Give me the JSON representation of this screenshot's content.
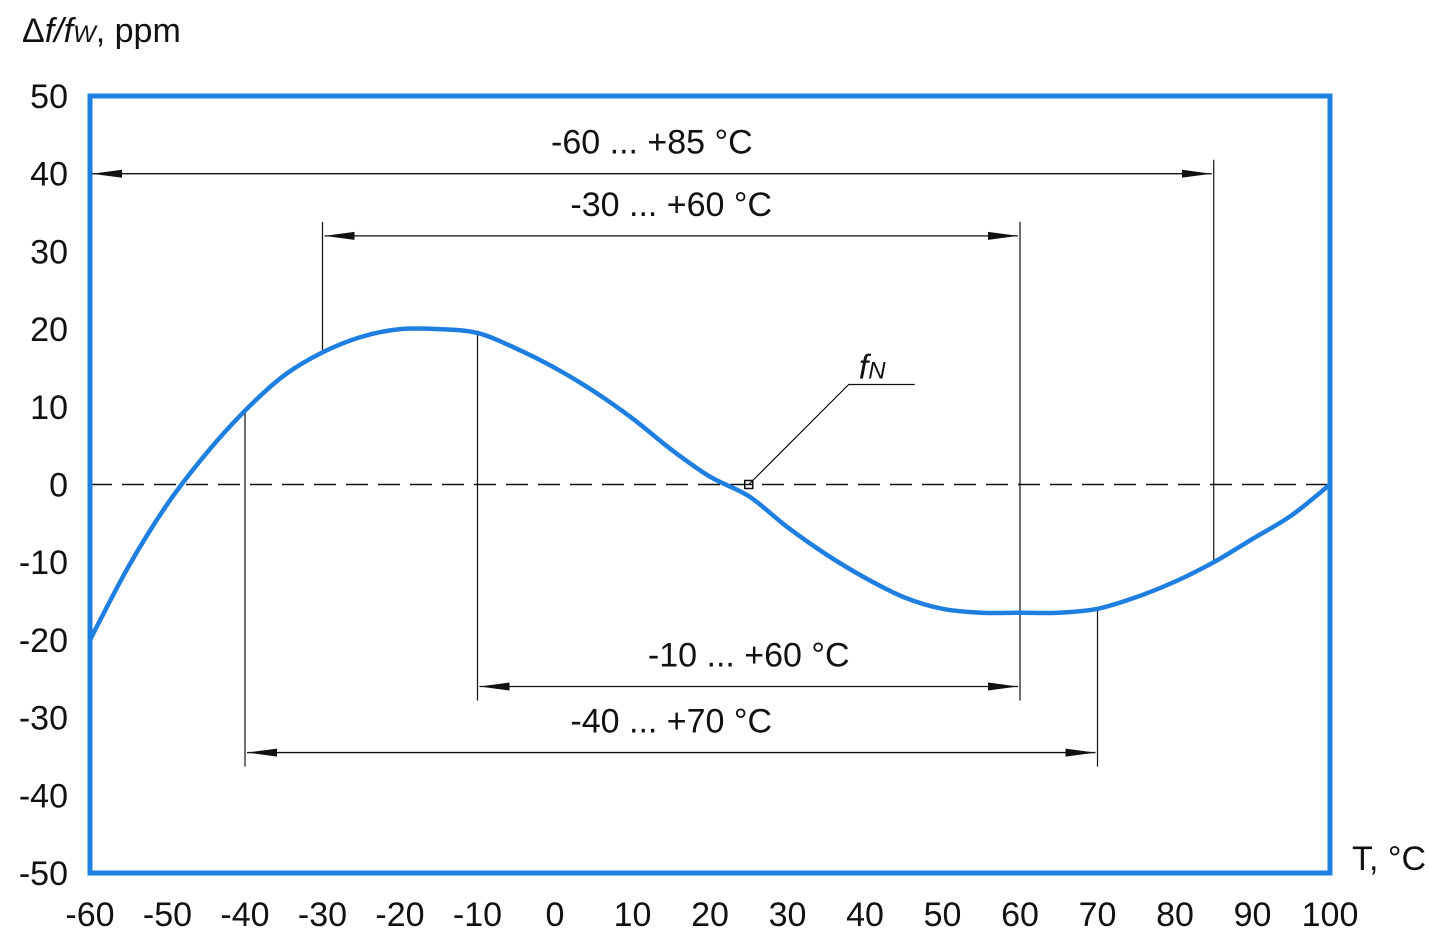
{
  "chart_data": {
    "type": "line",
    "ylabel": {
      "delta": "Δ",
      "f": "f",
      "slash": "/",
      "fw": "f",
      "w_sub": "W",
      "unit": ", ppm"
    },
    "xlabel": "T, °C",
    "xlim": [
      -60,
      100
    ],
    "ylim": [
      -50,
      50
    ],
    "x_ticks": [
      "-60",
      "-50",
      "-40",
      "-30",
      "-20",
      "-10",
      "0",
      "10",
      "20",
      "30",
      "40",
      "50",
      "60",
      "70",
      "80",
      "90",
      "100"
    ],
    "y_ticks": [
      "50",
      "40",
      "30",
      "20",
      "10",
      "0",
      "-10",
      "-20",
      "-30",
      "-40",
      "-50"
    ],
    "grid": false,
    "colors": {
      "curve": "#1e7fe0",
      "frame": "#1e7fe0",
      "annotation": "#111111"
    },
    "series": [
      {
        "x": [
          -60,
          -55,
          -50,
          -45,
          -40,
          -35,
          -30,
          -25,
          -20,
          -15,
          -10,
          -5,
          0,
          5,
          10,
          15,
          20,
          25,
          30,
          35,
          40,
          45,
          50,
          55,
          60,
          65,
          70,
          75,
          80,
          85,
          90,
          95,
          100
        ],
        "y": [
          -20,
          -10.5,
          -2.5,
          4.0,
          9.5,
          14.0,
          17.0,
          19.0,
          20.0,
          20.0,
          19.5,
          17.5,
          15.0,
          12.0,
          8.5,
          4.5,
          1.0,
          -1.5,
          -5.5,
          -9.0,
          -12.0,
          -14.5,
          -16.0,
          -16.5,
          -16.5,
          -16.5,
          -16.0,
          -14.5,
          -12.5,
          -10.0,
          -7.0,
          -4.0,
          0
        ]
      }
    ],
    "reference_line": {
      "y": 0,
      "style": "dashed"
    },
    "point_label": {
      "f": "f",
      "sub": "N",
      "x": 25,
      "y": 0
    },
    "ranges": [
      {
        "label": "-60 ... +85 °C",
        "from": -60,
        "to": 85,
        "y": 40
      },
      {
        "label": "-30 ... +60 °C",
        "from": -30,
        "to": 60,
        "y": 32
      },
      {
        "label": "-10 ... +60 °C",
        "from": -10,
        "to": 60,
        "y": -26
      },
      {
        "label": "-40 ... +70 °C",
        "from": -40,
        "to": 70,
        "y": -34.5
      }
    ]
  }
}
